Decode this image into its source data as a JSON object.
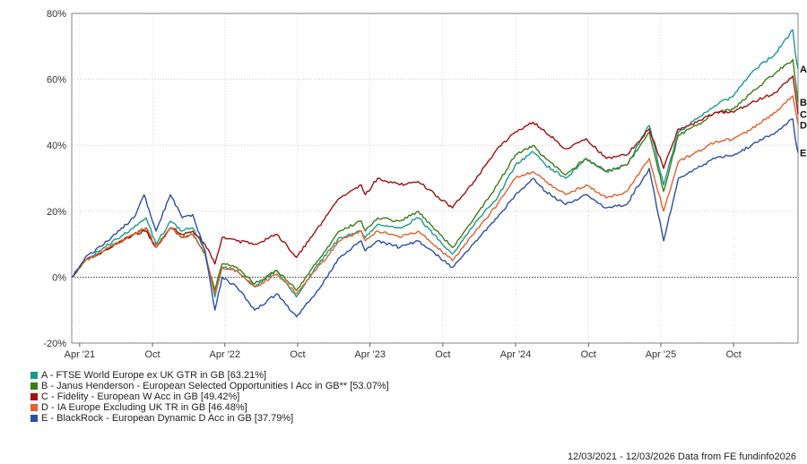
{
  "chart_data": {
    "type": "line",
    "title": "",
    "xlabel": "",
    "ylabel": "",
    "x_start": "2021-03-12",
    "x_end": "2026-03-12",
    "ylim": [
      -20,
      80
    ],
    "yticks": [
      -20,
      0,
      20,
      40,
      60,
      80
    ],
    "ytick_labels": [
      "-20%",
      "0%",
      "20%",
      "40%",
      "60%",
      "80%"
    ],
    "xticks": [
      {
        "date": "2021-04-01",
        "label": "Apr '21"
      },
      {
        "date": "2021-10-01",
        "label": "Oct"
      },
      {
        "date": "2022-04-01",
        "label": "Apr '22"
      },
      {
        "date": "2022-10-01",
        "label": "Oct"
      },
      {
        "date": "2023-04-01",
        "label": "Apr '23"
      },
      {
        "date": "2023-10-01",
        "label": "Oct"
      },
      {
        "date": "2024-04-01",
        "label": "Apr '24"
      },
      {
        "date": "2024-10-01",
        "label": "Oct"
      },
      {
        "date": "2025-04-01",
        "label": "Apr '25"
      },
      {
        "date": "2025-10-01",
        "label": "Oct"
      }
    ],
    "grid": true,
    "legend_position": "bottom-left",
    "series": [
      {
        "name": "A - FTSE World Europe ex UK GTR in GB [63.21%]",
        "end_label": "A",
        "color": "#1a9a8c",
        "points": [
          [
            "2021-03-12",
            0
          ],
          [
            "2021-04-15",
            5
          ],
          [
            "2021-06-01",
            9
          ],
          [
            "2021-08-15",
            15
          ],
          [
            "2021-09-15",
            18
          ],
          [
            "2021-10-10",
            10
          ],
          [
            "2021-11-15",
            17
          ],
          [
            "2021-12-15",
            14
          ],
          [
            "2022-01-10",
            15
          ],
          [
            "2022-02-10",
            8
          ],
          [
            "2022-03-07",
            -6
          ],
          [
            "2022-03-25",
            3
          ],
          [
            "2022-05-01",
            2
          ],
          [
            "2022-06-15",
            -3
          ],
          [
            "2022-08-10",
            2
          ],
          [
            "2022-09-28",
            -6
          ],
          [
            "2022-11-15",
            3
          ],
          [
            "2023-01-15",
            12
          ],
          [
            "2023-03-10",
            14
          ],
          [
            "2023-03-20",
            12
          ],
          [
            "2023-04-20",
            16
          ],
          [
            "2023-06-15",
            15
          ],
          [
            "2023-07-31",
            18
          ],
          [
            "2023-10-25",
            7
          ],
          [
            "2023-12-31",
            18
          ],
          [
            "2024-02-15",
            24
          ],
          [
            "2024-03-31",
            34
          ],
          [
            "2024-05-15",
            38
          ],
          [
            "2024-06-15",
            34
          ],
          [
            "2024-08-05",
            30
          ],
          [
            "2024-09-25",
            36
          ],
          [
            "2024-11-15",
            32
          ],
          [
            "2025-01-05",
            34
          ],
          [
            "2025-03-03",
            46
          ],
          [
            "2025-04-08",
            28
          ],
          [
            "2025-05-15",
            44
          ],
          [
            "2025-07-01",
            48
          ],
          [
            "2025-08-15",
            52
          ],
          [
            "2025-10-01",
            55
          ],
          [
            "2025-11-15",
            62
          ],
          [
            "2026-01-15",
            68
          ],
          [
            "2026-02-27",
            75
          ],
          [
            "2026-03-05",
            68
          ],
          [
            "2026-03-12",
            63.21
          ]
        ]
      },
      {
        "name": "B - Janus Henderson - European Selected Opportunities I Acc in GB** [53.07%]",
        "end_label": "B",
        "color": "#3d7d19",
        "points": [
          [
            "2021-03-12",
            0
          ],
          [
            "2021-04-15",
            5
          ],
          [
            "2021-06-01",
            8
          ],
          [
            "2021-08-15",
            13
          ],
          [
            "2021-09-15",
            15
          ],
          [
            "2021-10-10",
            9
          ],
          [
            "2021-11-15",
            15
          ],
          [
            "2021-12-15",
            12
          ],
          [
            "2022-01-10",
            13
          ],
          [
            "2022-02-10",
            7
          ],
          [
            "2022-03-07",
            -4
          ],
          [
            "2022-03-25",
            4
          ],
          [
            "2022-05-01",
            3
          ],
          [
            "2022-06-15",
            -2
          ],
          [
            "2022-08-10",
            2
          ],
          [
            "2022-09-28",
            -4
          ],
          [
            "2022-11-15",
            4
          ],
          [
            "2023-01-15",
            14
          ],
          [
            "2023-03-10",
            17
          ],
          [
            "2023-03-20",
            14
          ],
          [
            "2023-04-20",
            18
          ],
          [
            "2023-06-15",
            17
          ],
          [
            "2023-07-31",
            20
          ],
          [
            "2023-10-25",
            9
          ],
          [
            "2023-12-31",
            20
          ],
          [
            "2024-02-15",
            28
          ],
          [
            "2024-03-31",
            37
          ],
          [
            "2024-05-15",
            40
          ],
          [
            "2024-06-15",
            36
          ],
          [
            "2024-08-05",
            31
          ],
          [
            "2024-09-25",
            36
          ],
          [
            "2024-11-15",
            32
          ],
          [
            "2025-01-05",
            34
          ],
          [
            "2025-03-03",
            44
          ],
          [
            "2025-04-08",
            26
          ],
          [
            "2025-05-15",
            43
          ],
          [
            "2025-07-01",
            46
          ],
          [
            "2025-08-15",
            50
          ],
          [
            "2025-10-01",
            51
          ],
          [
            "2025-11-15",
            56
          ],
          [
            "2026-01-15",
            62
          ],
          [
            "2026-02-27",
            66
          ],
          [
            "2026-03-05",
            60
          ],
          [
            "2026-03-12",
            53.07
          ]
        ]
      },
      {
        "name": "C - Fidelity - European W Acc in GB [49.42%]",
        "end_label": "C",
        "color": "#a01010",
        "points": [
          [
            "2021-03-12",
            0
          ],
          [
            "2021-04-15",
            5
          ],
          [
            "2021-06-01",
            8
          ],
          [
            "2021-08-15",
            13
          ],
          [
            "2021-09-15",
            14
          ],
          [
            "2021-10-10",
            9
          ],
          [
            "2021-11-15",
            15
          ],
          [
            "2021-12-15",
            13
          ],
          [
            "2022-01-10",
            14
          ],
          [
            "2022-02-10",
            10
          ],
          [
            "2022-03-07",
            4
          ],
          [
            "2022-03-25",
            12
          ],
          [
            "2022-05-01",
            11
          ],
          [
            "2022-06-15",
            10
          ],
          [
            "2022-08-10",
            13
          ],
          [
            "2022-09-28",
            6
          ],
          [
            "2022-11-15",
            14
          ],
          [
            "2023-01-15",
            24
          ],
          [
            "2023-03-10",
            28
          ],
          [
            "2023-03-20",
            25
          ],
          [
            "2023-04-20",
            30
          ],
          [
            "2023-06-15",
            28
          ],
          [
            "2023-07-31",
            29
          ],
          [
            "2023-10-25",
            21
          ],
          [
            "2023-12-31",
            31
          ],
          [
            "2024-02-15",
            39
          ],
          [
            "2024-03-31",
            44
          ],
          [
            "2024-05-15",
            47
          ],
          [
            "2024-06-15",
            44
          ],
          [
            "2024-08-05",
            39
          ],
          [
            "2024-09-25",
            42
          ],
          [
            "2024-11-15",
            36
          ],
          [
            "2025-01-05",
            37
          ],
          [
            "2025-03-03",
            45
          ],
          [
            "2025-04-08",
            33
          ],
          [
            "2025-05-15",
            45
          ],
          [
            "2025-07-01",
            47
          ],
          [
            "2025-08-15",
            50
          ],
          [
            "2025-10-01",
            50
          ],
          [
            "2025-11-15",
            53
          ],
          [
            "2026-01-15",
            56
          ],
          [
            "2026-02-27",
            61
          ],
          [
            "2026-03-05",
            56
          ],
          [
            "2026-03-12",
            49.42
          ]
        ]
      },
      {
        "name": "D - IA Europe Excluding UK TR in GB [46.48%]",
        "end_label": "D",
        "color": "#e0612b",
        "points": [
          [
            "2021-03-12",
            0
          ],
          [
            "2021-04-15",
            5
          ],
          [
            "2021-06-01",
            8
          ],
          [
            "2021-08-15",
            13
          ],
          [
            "2021-09-15",
            15
          ],
          [
            "2021-10-10",
            9
          ],
          [
            "2021-11-15",
            15
          ],
          [
            "2021-12-15",
            12
          ],
          [
            "2022-01-10",
            13
          ],
          [
            "2022-02-10",
            7
          ],
          [
            "2022-03-07",
            -5
          ],
          [
            "2022-03-25",
            3
          ],
          [
            "2022-05-01",
            2
          ],
          [
            "2022-06-15",
            -3
          ],
          [
            "2022-08-10",
            1
          ],
          [
            "2022-09-28",
            -5
          ],
          [
            "2022-11-15",
            2
          ],
          [
            "2023-01-15",
            11
          ],
          [
            "2023-03-10",
            14
          ],
          [
            "2023-03-20",
            11
          ],
          [
            "2023-04-20",
            14
          ],
          [
            "2023-06-15",
            12
          ],
          [
            "2023-07-31",
            14
          ],
          [
            "2023-10-25",
            5
          ],
          [
            "2023-12-31",
            15
          ],
          [
            "2024-02-15",
            22
          ],
          [
            "2024-03-31",
            30
          ],
          [
            "2024-05-15",
            32
          ],
          [
            "2024-06-15",
            29
          ],
          [
            "2024-08-05",
            25
          ],
          [
            "2024-09-25",
            28
          ],
          [
            "2024-11-15",
            24
          ],
          [
            "2025-01-05",
            26
          ],
          [
            "2025-03-03",
            36
          ],
          [
            "2025-04-08",
            20
          ],
          [
            "2025-05-15",
            35
          ],
          [
            "2025-07-01",
            38
          ],
          [
            "2025-08-15",
            41
          ],
          [
            "2025-10-01",
            42
          ],
          [
            "2025-11-15",
            45
          ],
          [
            "2026-01-15",
            50
          ],
          [
            "2026-02-27",
            55
          ],
          [
            "2026-03-05",
            51
          ],
          [
            "2026-03-12",
            46.48
          ]
        ]
      },
      {
        "name": "E - BlackRock - European Dynamic D Acc in GB [37.79%]",
        "end_label": "E",
        "color": "#2a4fa8",
        "points": [
          [
            "2021-03-12",
            0
          ],
          [
            "2021-04-15",
            6
          ],
          [
            "2021-06-01",
            10
          ],
          [
            "2021-08-15",
            18
          ],
          [
            "2021-09-10",
            25
          ],
          [
            "2021-10-10",
            14
          ],
          [
            "2021-11-15",
            25
          ],
          [
            "2021-12-15",
            18
          ],
          [
            "2022-01-10",
            19
          ],
          [
            "2022-02-10",
            8
          ],
          [
            "2022-03-07",
            -10
          ],
          [
            "2022-03-25",
            0
          ],
          [
            "2022-05-01",
            -3
          ],
          [
            "2022-06-15",
            -10
          ],
          [
            "2022-08-10",
            -5
          ],
          [
            "2022-09-28",
            -12
          ],
          [
            "2022-11-15",
            -5
          ],
          [
            "2023-01-15",
            6
          ],
          [
            "2023-03-10",
            11
          ],
          [
            "2023-03-20",
            8
          ],
          [
            "2023-04-20",
            11
          ],
          [
            "2023-06-15",
            9
          ],
          [
            "2023-07-31",
            11
          ],
          [
            "2023-10-25",
            3
          ],
          [
            "2023-12-31",
            12
          ],
          [
            "2024-02-15",
            18
          ],
          [
            "2024-03-31",
            25
          ],
          [
            "2024-05-15",
            30
          ],
          [
            "2024-06-15",
            26
          ],
          [
            "2024-08-05",
            22
          ],
          [
            "2024-09-25",
            25
          ],
          [
            "2024-11-15",
            21
          ],
          [
            "2025-01-05",
            22
          ],
          [
            "2025-03-03",
            33
          ],
          [
            "2025-04-08",
            11
          ],
          [
            "2025-05-15",
            30
          ],
          [
            "2025-07-01",
            33
          ],
          [
            "2025-08-15",
            36
          ],
          [
            "2025-10-01",
            37
          ],
          [
            "2025-11-15",
            40
          ],
          [
            "2026-01-15",
            44
          ],
          [
            "2026-02-27",
            48
          ],
          [
            "2026-03-05",
            42
          ],
          [
            "2026-03-12",
            37.79
          ]
        ]
      }
    ]
  },
  "footer": {
    "text": "12/03/2021 - 12/03/2026 Data from FE fundinfo2026"
  }
}
